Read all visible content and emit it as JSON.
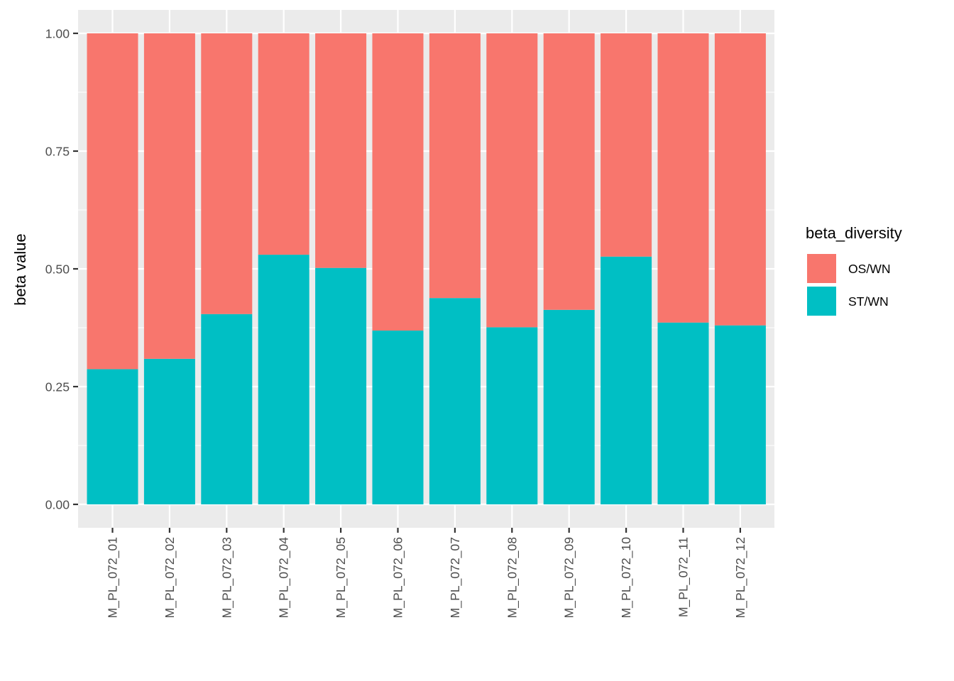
{
  "chart_data": {
    "type": "bar",
    "stacked": true,
    "title": "",
    "xlabel": "",
    "ylabel": "beta value",
    "ylim": [
      0,
      1
    ],
    "yticks": [
      0,
      0.25,
      0.5,
      0.75,
      1.0
    ],
    "ytick_labels": [
      "0.00",
      "0.25",
      "0.50",
      "0.75",
      "1.00"
    ],
    "grid": true,
    "legend_position": "right",
    "legend_title": "beta_diversity",
    "categories": [
      "M_PL_072_01",
      "M_PL_072_02",
      "M_PL_072_03",
      "M_PL_072_04",
      "M_PL_072_05",
      "M_PL_072_06",
      "M_PL_072_07",
      "M_PL_072_08",
      "M_PL_072_09",
      "M_PL_072_10",
      "M_PL_072_11",
      "M_PL_072_12"
    ],
    "series": [
      {
        "name": "OS/WN",
        "color": "#F8766D",
        "values": [
          0.713,
          0.691,
          0.596,
          0.47,
          0.498,
          0.631,
          0.562,
          0.624,
          0.587,
          0.474,
          0.614,
          0.62
        ]
      },
      {
        "name": "ST/WN",
        "color": "#00BFC4",
        "values": [
          0.287,
          0.309,
          0.404,
          0.53,
          0.502,
          0.369,
          0.438,
          0.376,
          0.413,
          0.526,
          0.386,
          0.38
        ]
      }
    ],
    "stack_order_bottom_to_top": [
      "ST/WN",
      "OS/WN"
    ],
    "colors": {
      "panel_background": "#EBEBEB",
      "grid": "#FFFFFF",
      "axis_text": "#4D4D4D",
      "axis_title": "#000000"
    }
  }
}
